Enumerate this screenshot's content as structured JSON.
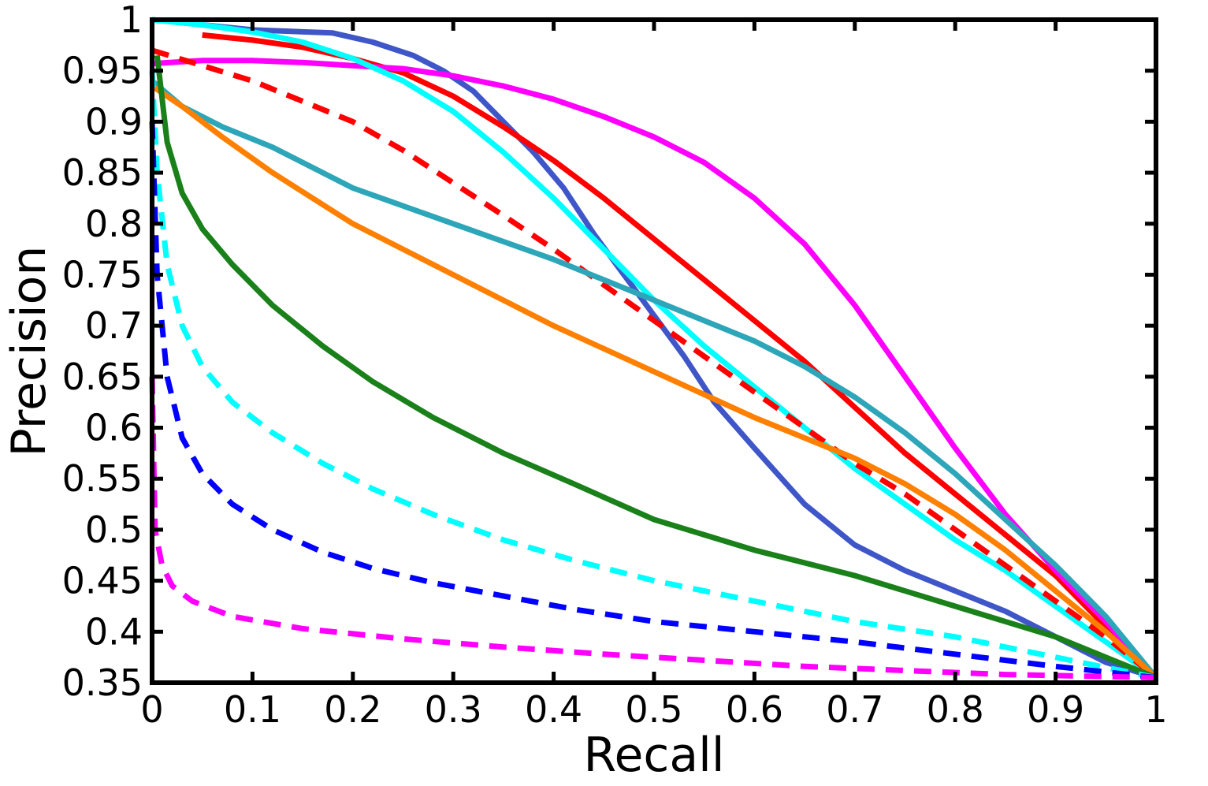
{
  "chart_data": {
    "type": "line",
    "title": "",
    "xlabel": "Recall",
    "ylabel": "Precision",
    "xlim": [
      0,
      1
    ],
    "ylim": [
      0.35,
      1
    ],
    "xticks": [
      0,
      0.1,
      0.2,
      0.3,
      0.4,
      0.5,
      0.6,
      0.7,
      0.8,
      0.9,
      1
    ],
    "xtick_labels": [
      "0",
      "0.1",
      "0.2",
      "0.3",
      "0.4",
      "0.5",
      "0.6",
      "0.7",
      "0.8",
      "0.9",
      "1"
    ],
    "yticks": [
      0.35,
      0.4,
      0.45,
      0.5,
      0.55,
      0.6,
      0.65,
      0.7,
      0.75,
      0.8,
      0.85,
      0.9,
      0.95,
      1
    ],
    "ytick_labels": [
      "0.35",
      "0.4",
      "0.45",
      "0.5",
      "0.55",
      "0.6",
      "0.65",
      "0.7",
      "0.75",
      "0.8",
      "0.85",
      "0.9",
      "0.95",
      "1"
    ],
    "grid": false,
    "legend": "none",
    "series": [
      {
        "color": "#3f56c8",
        "dash": "solid",
        "points": [
          [
            0,
            1
          ],
          [
            0.1,
            0.99
          ],
          [
            0.18,
            0.987
          ],
          [
            0.22,
            0.978
          ],
          [
            0.26,
            0.965
          ],
          [
            0.29,
            0.95
          ],
          [
            0.32,
            0.93
          ],
          [
            0.35,
            0.9
          ],
          [
            0.38,
            0.87
          ],
          [
            0.41,
            0.835
          ],
          [
            0.44,
            0.79
          ],
          [
            0.47,
            0.75
          ],
          [
            0.5,
            0.71
          ],
          [
            0.53,
            0.67
          ],
          [
            0.56,
            0.625
          ],
          [
            0.6,
            0.58
          ],
          [
            0.65,
            0.525
          ],
          [
            0.7,
            0.485
          ],
          [
            0.75,
            0.46
          ],
          [
            0.8,
            0.44
          ],
          [
            0.85,
            0.42
          ],
          [
            0.9,
            0.395
          ],
          [
            0.95,
            0.37
          ],
          [
            1,
            0.355
          ]
        ]
      },
      {
        "color": "#ff0000",
        "dash": "solid",
        "points": [
          [
            0.05,
            0.985
          ],
          [
            0.1,
            0.98
          ],
          [
            0.15,
            0.973
          ],
          [
            0.2,
            0.962
          ],
          [
            0.25,
            0.948
          ],
          [
            0.3,
            0.925
          ],
          [
            0.35,
            0.895
          ],
          [
            0.4,
            0.862
          ],
          [
            0.45,
            0.825
          ],
          [
            0.5,
            0.785
          ],
          [
            0.55,
            0.745
          ],
          [
            0.6,
            0.705
          ],
          [
            0.65,
            0.665
          ],
          [
            0.7,
            0.62
          ],
          [
            0.75,
            0.575
          ],
          [
            0.8,
            0.535
          ],
          [
            0.85,
            0.495
          ],
          [
            0.9,
            0.455
          ],
          [
            0.95,
            0.405
          ],
          [
            1,
            0.355
          ]
        ]
      },
      {
        "color": "#ff00ff",
        "dash": "solid",
        "points": [
          [
            0,
            0.957
          ],
          [
            0.05,
            0.96
          ],
          [
            0.1,
            0.96
          ],
          [
            0.15,
            0.958
          ],
          [
            0.2,
            0.955
          ],
          [
            0.25,
            0.952
          ],
          [
            0.3,
            0.945
          ],
          [
            0.35,
            0.935
          ],
          [
            0.4,
            0.922
          ],
          [
            0.45,
            0.905
          ],
          [
            0.5,
            0.885
          ],
          [
            0.55,
            0.86
          ],
          [
            0.6,
            0.825
          ],
          [
            0.65,
            0.78
          ],
          [
            0.7,
            0.72
          ],
          [
            0.75,
            0.65
          ],
          [
            0.8,
            0.58
          ],
          [
            0.85,
            0.515
          ],
          [
            0.9,
            0.46
          ],
          [
            0.95,
            0.41
          ],
          [
            1,
            0.355
          ]
        ]
      },
      {
        "color": "#00ffff",
        "dash": "solid",
        "points": [
          [
            0,
            1
          ],
          [
            0.05,
            0.995
          ],
          [
            0.1,
            0.988
          ],
          [
            0.15,
            0.978
          ],
          [
            0.2,
            0.962
          ],
          [
            0.25,
            0.94
          ],
          [
            0.3,
            0.91
          ],
          [
            0.35,
            0.87
          ],
          [
            0.4,
            0.825
          ],
          [
            0.45,
            0.775
          ],
          [
            0.5,
            0.725
          ],
          [
            0.55,
            0.68
          ],
          [
            0.6,
            0.64
          ],
          [
            0.65,
            0.6
          ],
          [
            0.7,
            0.56
          ],
          [
            0.75,
            0.525
          ],
          [
            0.8,
            0.49
          ],
          [
            0.85,
            0.46
          ],
          [
            0.9,
            0.425
          ],
          [
            0.95,
            0.39
          ],
          [
            1,
            0.355
          ]
        ]
      },
      {
        "color": "#ff0000",
        "dash": "dashed",
        "points": [
          [
            0,
            0.97
          ],
          [
            0.05,
            0.955
          ],
          [
            0.1,
            0.94
          ],
          [
            0.15,
            0.92
          ],
          [
            0.2,
            0.9
          ],
          [
            0.25,
            0.872
          ],
          [
            0.3,
            0.84
          ],
          [
            0.35,
            0.808
          ],
          [
            0.4,
            0.775
          ],
          [
            0.45,
            0.74
          ],
          [
            0.5,
            0.705
          ],
          [
            0.55,
            0.67
          ],
          [
            0.6,
            0.635
          ],
          [
            0.65,
            0.6
          ],
          [
            0.7,
            0.565
          ],
          [
            0.75,
            0.535
          ],
          [
            0.8,
            0.5
          ],
          [
            0.85,
            0.465
          ],
          [
            0.9,
            0.43
          ],
          [
            0.95,
            0.395
          ],
          [
            1,
            0.355
          ]
        ]
      },
      {
        "color": "#2ca6b8",
        "dash": "solid",
        "points": [
          [
            0,
            0.94
          ],
          [
            0.03,
            0.915
          ],
          [
            0.07,
            0.895
          ],
          [
            0.12,
            0.875
          ],
          [
            0.2,
            0.835
          ],
          [
            0.3,
            0.8
          ],
          [
            0.4,
            0.765
          ],
          [
            0.5,
            0.725
          ],
          [
            0.6,
            0.685
          ],
          [
            0.65,
            0.66
          ],
          [
            0.7,
            0.63
          ],
          [
            0.75,
            0.595
          ],
          [
            0.8,
            0.555
          ],
          [
            0.85,
            0.51
          ],
          [
            0.9,
            0.465
          ],
          [
            0.95,
            0.415
          ],
          [
            1,
            0.355
          ]
        ]
      },
      {
        "color": "#ff8000",
        "dash": "solid",
        "points": [
          [
            0,
            0.935
          ],
          [
            0.03,
            0.915
          ],
          [
            0.07,
            0.885
          ],
          [
            0.12,
            0.85
          ],
          [
            0.2,
            0.8
          ],
          [
            0.3,
            0.75
          ],
          [
            0.4,
            0.7
          ],
          [
            0.5,
            0.655
          ],
          [
            0.6,
            0.61
          ],
          [
            0.7,
            0.57
          ],
          [
            0.75,
            0.545
          ],
          [
            0.8,
            0.515
          ],
          [
            0.85,
            0.48
          ],
          [
            0.9,
            0.44
          ],
          [
            0.95,
            0.4
          ],
          [
            1,
            0.355
          ]
        ]
      },
      {
        "color": "#1a801a",
        "dash": "solid",
        "points": [
          [
            0.005,
            0.965
          ],
          [
            0.015,
            0.88
          ],
          [
            0.03,
            0.83
          ],
          [
            0.05,
            0.795
          ],
          [
            0.08,
            0.76
          ],
          [
            0.12,
            0.72
          ],
          [
            0.17,
            0.68
          ],
          [
            0.22,
            0.645
          ],
          [
            0.28,
            0.61
          ],
          [
            0.35,
            0.575
          ],
          [
            0.42,
            0.545
          ],
          [
            0.5,
            0.51
          ],
          [
            0.6,
            0.48
          ],
          [
            0.7,
            0.455
          ],
          [
            0.8,
            0.425
          ],
          [
            0.9,
            0.395
          ],
          [
            0.95,
            0.375
          ],
          [
            1,
            0.355
          ]
        ]
      },
      {
        "color": "#00ffff",
        "dash": "dashed",
        "points": [
          [
            0,
            0.95
          ],
          [
            0.005,
            0.85
          ],
          [
            0.015,
            0.76
          ],
          [
            0.03,
            0.7
          ],
          [
            0.05,
            0.66
          ],
          [
            0.08,
            0.625
          ],
          [
            0.12,
            0.595
          ],
          [
            0.17,
            0.565
          ],
          [
            0.22,
            0.54
          ],
          [
            0.28,
            0.515
          ],
          [
            0.35,
            0.49
          ],
          [
            0.42,
            0.47
          ],
          [
            0.5,
            0.45
          ],
          [
            0.6,
            0.43
          ],
          [
            0.7,
            0.41
          ],
          [
            0.8,
            0.395
          ],
          [
            0.9,
            0.375
          ],
          [
            1,
            0.355
          ]
        ]
      },
      {
        "color": "#0000ff",
        "dash": "dashed",
        "points": [
          [
            0,
            0.9
          ],
          [
            0.005,
            0.75
          ],
          [
            0.015,
            0.65
          ],
          [
            0.03,
            0.59
          ],
          [
            0.05,
            0.555
          ],
          [
            0.08,
            0.525
          ],
          [
            0.12,
            0.5
          ],
          [
            0.17,
            0.478
          ],
          [
            0.22,
            0.462
          ],
          [
            0.28,
            0.448
          ],
          [
            0.35,
            0.435
          ],
          [
            0.42,
            0.422
          ],
          [
            0.5,
            0.41
          ],
          [
            0.6,
            0.4
          ],
          [
            0.7,
            0.39
          ],
          [
            0.8,
            0.378
          ],
          [
            0.9,
            0.366
          ],
          [
            1,
            0.355
          ]
        ]
      },
      {
        "color": "#ff00ff",
        "dash": "dashed",
        "points": [
          [
            0,
            0.65
          ],
          [
            0.003,
            0.5
          ],
          [
            0.01,
            0.465
          ],
          [
            0.02,
            0.445
          ],
          [
            0.04,
            0.43
          ],
          [
            0.08,
            0.415
          ],
          [
            0.15,
            0.403
          ],
          [
            0.25,
            0.393
          ],
          [
            0.35,
            0.385
          ],
          [
            0.45,
            0.378
          ],
          [
            0.55,
            0.372
          ],
          [
            0.65,
            0.366
          ],
          [
            0.75,
            0.362
          ],
          [
            0.85,
            0.358
          ],
          [
            0.95,
            0.356
          ],
          [
            1,
            0.355
          ]
        ]
      }
    ]
  }
}
